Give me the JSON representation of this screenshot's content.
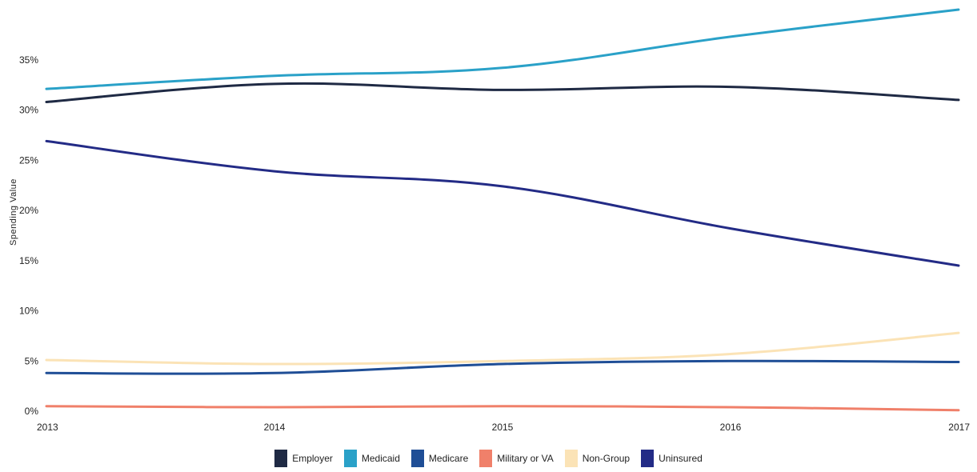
{
  "chart_data": {
    "type": "line",
    "title": "",
    "xlabel": "",
    "ylabel": "Spending Value",
    "x": [
      "2013",
      "2014",
      "2015",
      "2016",
      "2017"
    ],
    "ylim": [
      0,
      40
    ],
    "y_ticks": [
      0,
      5,
      10,
      15,
      20,
      25,
      30,
      35
    ],
    "y_tick_labels": [
      "0%",
      "5%",
      "10%",
      "15%",
      "20%",
      "25%",
      "30%",
      "35%"
    ],
    "legend_position": "bottom",
    "series": [
      {
        "name": "Employer",
        "color": "#1f2a44",
        "values": [
          30.8,
          32.6,
          32.0,
          32.3,
          31.0
        ]
      },
      {
        "name": "Medicaid",
        "color": "#2aa1c8",
        "values": [
          32.1,
          33.4,
          34.2,
          37.3,
          40.0
        ]
      },
      {
        "name": "Medicare",
        "color": "#1f4e96",
        "values": [
          3.8,
          3.8,
          4.7,
          5.0,
          4.9
        ]
      },
      {
        "name": "Military or VA",
        "color": "#f0806a",
        "values": [
          0.5,
          0.4,
          0.5,
          0.4,
          0.1
        ]
      },
      {
        "name": "Non-Group",
        "color": "#fbe3b6",
        "values": [
          5.1,
          4.7,
          5.0,
          5.7,
          7.8
        ]
      },
      {
        "name": "Uninsured",
        "color": "#232b86",
        "values": [
          26.9,
          23.9,
          22.4,
          18.2,
          14.5
        ]
      }
    ]
  }
}
